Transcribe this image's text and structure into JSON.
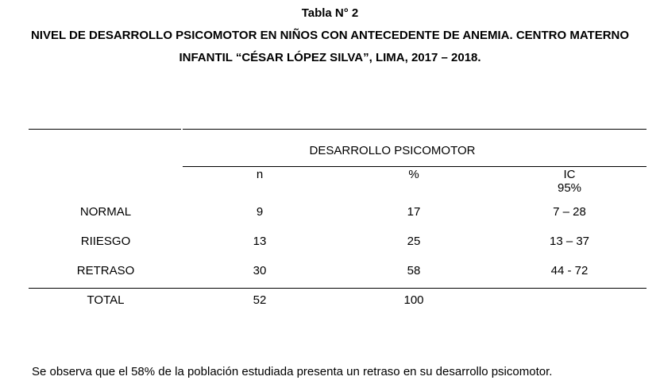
{
  "caption": {
    "number": "Tabla N° 2",
    "title_line1": "NIVEL DE DESARROLLO PSICOMOTOR EN NIÑOS CON ANTECEDENTE DE ANEMIA. CENTRO MATERNO",
    "title_line2": "INFANTIL “CÉSAR LÓPEZ SILVA”, LIMA, 2017 – 2018."
  },
  "table": {
    "group_header": "DESARROLLO PSICOMOTOR",
    "columns": {
      "n": "n",
      "pct": "%",
      "ic_line1": "IC",
      "ic_line2": "95%"
    },
    "rows": [
      {
        "label": "NORMAL",
        "n": "9",
        "pct": "17",
        "ic": "7 – 28"
      },
      {
        "label": "RIIESGO",
        "n": "13",
        "pct": "25",
        "ic": "13 – 37"
      },
      {
        "label": "RETRASO",
        "n": "30",
        "pct": "58",
        "ic": "44 - 72"
      },
      {
        "label": "TOTAL",
        "n": "52",
        "pct": "100",
        "ic": ""
      }
    ]
  },
  "footnote": "Se observa que el 58% de la población estudiada presenta un retraso en su desarrollo psicomotor."
}
